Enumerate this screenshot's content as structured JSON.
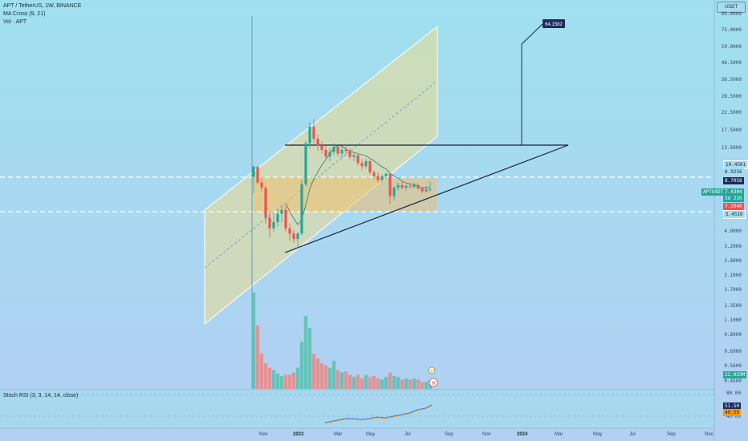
{
  "header": {
    "symbol_line": "APT / TetherUS, 1W, BINANCE",
    "ma_line": "MA Cross (9, 21)",
    "vol_line": "Vol · APT",
    "currency": "USDT"
  },
  "price_axis": {
    "ticks": [
      "95.0000",
      "75.0000",
      "59.0000",
      "46.5000",
      "36.5000",
      "28.5000",
      "22.5000",
      "17.5000",
      "13.5000",
      "10.4501",
      "8.9256",
      "7.2040",
      "5.4510",
      "5.0000",
      "4.0000",
      "3.2000",
      "2.6000",
      "2.1000",
      "1.7000",
      "1.3500",
      "1.1000",
      "0.8900",
      "0.6900",
      "0.5600",
      "0.4500"
    ]
  },
  "price_tags": {
    "target": "64.1582",
    "upper": "10.4501",
    "level1": "8.9256",
    "level2": "8.7058",
    "current_symbol": "APTUSDT",
    "current": "7.4304",
    "countdown": "3d 21h",
    "red": "7.2040",
    "lower": "5.4510",
    "volume_value": "22.033M"
  },
  "stoch": {
    "label": "Stoch RSI (3, 3, 14, 14, close)",
    "ticks": [
      "80.00",
      "40.00"
    ],
    "value1": "51.50",
    "value2": "40.59"
  },
  "time_axis": [
    {
      "label": "Nov",
      "bold": false
    },
    {
      "label": "2023",
      "bold": true
    },
    {
      "label": "Mar",
      "bold": false
    },
    {
      "label": "May",
      "bold": false
    },
    {
      "label": "Jul",
      "bold": false
    },
    {
      "label": "Sep",
      "bold": false
    },
    {
      "label": "Nov",
      "bold": false
    },
    {
      "label": "2024",
      "bold": true
    },
    {
      "label": "Mar",
      "bold": false
    },
    {
      "label": "May",
      "bold": false
    },
    {
      "label": "Jul",
      "bold": false
    },
    {
      "label": "Sep",
      "bold": false
    },
    {
      "label": "Nov",
      "bold": false
    }
  ],
  "colors": {
    "bg": "#9fd9f0",
    "up": "#26a69a",
    "down": "#ef5350",
    "channel_fill": "#e8d98a",
    "zone_fill": "#f0c070"
  },
  "chart_data": {
    "type": "candlestick",
    "title": "APT / TetherUS, 1W, BINANCE",
    "y_scale": "log",
    "ylim": [
      0.45,
      95
    ],
    "candles": [
      {
        "o": 8.9,
        "h": 10.5,
        "l": 7.0,
        "c": 10.3
      },
      {
        "o": 10.3,
        "h": 10.5,
        "l": 8.0,
        "c": 8.2
      },
      {
        "o": 8.2,
        "h": 8.9,
        "l": 7.2,
        "c": 7.6
      },
      {
        "o": 7.6,
        "h": 7.8,
        "l": 4.5,
        "c": 4.9
      },
      {
        "o": 4.9,
        "h": 5.4,
        "l": 3.7,
        "c": 4.2
      },
      {
        "o": 4.2,
        "h": 5.2,
        "l": 4.0,
        "c": 4.6
      },
      {
        "o": 4.6,
        "h": 5.6,
        "l": 4.3,
        "c": 5.2
      },
      {
        "o": 5.2,
        "h": 5.9,
        "l": 4.6,
        "c": 5.5
      },
      {
        "o": 5.5,
        "h": 5.8,
        "l": 4.0,
        "c": 4.2
      },
      {
        "o": 4.2,
        "h": 4.5,
        "l": 3.5,
        "c": 3.9
      },
      {
        "o": 3.9,
        "h": 4.1,
        "l": 3.4,
        "c": 3.6
      },
      {
        "o": 3.6,
        "h": 4.0,
        "l": 3.2,
        "c": 3.9
      },
      {
        "o": 3.9,
        "h": 8.5,
        "l": 3.8,
        "c": 8.0
      },
      {
        "o": 8.0,
        "h": 15.0,
        "l": 7.8,
        "c": 14.5
      },
      {
        "o": 14.5,
        "h": 19.9,
        "l": 13.5,
        "c": 18.5
      },
      {
        "o": 18.5,
        "h": 20.4,
        "l": 14.5,
        "c": 15.5
      },
      {
        "o": 15.5,
        "h": 16.5,
        "l": 13.0,
        "c": 14.0
      },
      {
        "o": 14.0,
        "h": 15.0,
        "l": 12.5,
        "c": 13.2
      },
      {
        "o": 13.2,
        "h": 14.0,
        "l": 11.5,
        "c": 12.0
      },
      {
        "o": 12.0,
        "h": 13.5,
        "l": 11.2,
        "c": 12.8
      },
      {
        "o": 12.8,
        "h": 14.5,
        "l": 12.2,
        "c": 13.8
      },
      {
        "o": 13.8,
        "h": 14.0,
        "l": 12.0,
        "c": 12.5
      },
      {
        "o": 12.5,
        "h": 13.8,
        "l": 11.8,
        "c": 13.2
      },
      {
        "o": 13.2,
        "h": 14.2,
        "l": 12.2,
        "c": 13.0
      },
      {
        "o": 13.0,
        "h": 13.5,
        "l": 11.5,
        "c": 11.9
      },
      {
        "o": 11.9,
        "h": 12.8,
        "l": 11.2,
        "c": 12.2
      },
      {
        "o": 12.2,
        "h": 12.5,
        "l": 10.5,
        "c": 10.9
      },
      {
        "o": 10.9,
        "h": 11.5,
        "l": 9.8,
        "c": 10.4
      },
      {
        "o": 10.4,
        "h": 11.6,
        "l": 10.0,
        "c": 11.2
      },
      {
        "o": 11.2,
        "h": 11.4,
        "l": 9.2,
        "c": 9.5
      },
      {
        "o": 9.5,
        "h": 9.8,
        "l": 8.6,
        "c": 9.0
      },
      {
        "o": 9.0,
        "h": 9.5,
        "l": 8.2,
        "c": 8.5
      },
      {
        "o": 8.5,
        "h": 9.2,
        "l": 8.2,
        "c": 9.0
      },
      {
        "o": 9.0,
        "h": 9.5,
        "l": 8.6,
        "c": 9.3
      },
      {
        "o": 9.3,
        "h": 9.5,
        "l": 6.0,
        "c": 6.7
      },
      {
        "o": 6.7,
        "h": 7.8,
        "l": 6.3,
        "c": 7.6
      },
      {
        "o": 7.6,
        "h": 8.2,
        "l": 7.3,
        "c": 7.9
      },
      {
        "o": 7.9,
        "h": 8.3,
        "l": 7.4,
        "c": 7.6
      },
      {
        "o": 7.6,
        "h": 8.0,
        "l": 7.3,
        "c": 7.8
      },
      {
        "o": 7.8,
        "h": 8.1,
        "l": 7.5,
        "c": 7.7
      },
      {
        "o": 7.7,
        "h": 8.2,
        "l": 7.5,
        "c": 7.9
      },
      {
        "o": 7.9,
        "h": 8.1,
        "l": 7.4,
        "c": 7.5
      },
      {
        "o": 7.5,
        "h": 7.7,
        "l": 7.0,
        "c": 7.2
      },
      {
        "o": 7.2,
        "h": 7.8,
        "l": 7.1,
        "c": 7.4
      },
      {
        "o": 7.4,
        "h": 8.3,
        "l": 7.2,
        "c": 7.43
      }
    ],
    "volume": [
      82,
      54,
      30,
      22,
      18,
      16,
      13,
      11,
      12,
      12,
      14,
      18,
      40,
      62,
      52,
      30,
      26,
      22,
      20,
      18,
      24,
      16,
      14,
      15,
      12,
      10,
      12,
      9,
      12,
      10,
      11,
      9,
      8,
      10,
      14,
      11,
      10,
      8,
      9,
      8,
      9,
      8,
      6,
      6,
      7
    ]
  }
}
